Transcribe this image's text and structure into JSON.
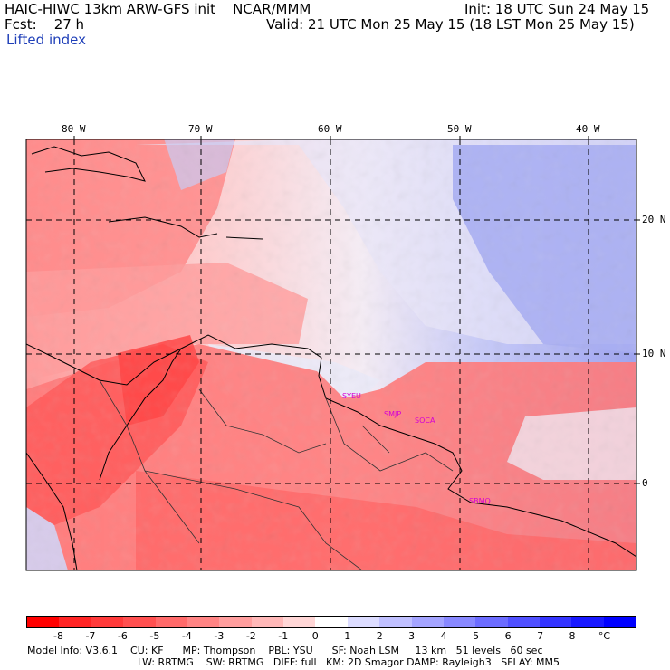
{
  "header": {
    "left_line1": "HAIC-HIWC 13km ARW-GFS init    NCAR/MMM",
    "left_line2": "Fcst:    27 h",
    "right_line1": "Init: 18 UTC Sun 24 May 15",
    "right_line2": "Valid: 21 UTC Mon 25 May 15 (18 LST Mon 25 May 15)",
    "field_name": "Lifted index"
  },
  "map": {
    "lon_labels": [
      "80 W",
      "70 W",
      "60 W",
      "50 W",
      "40 W"
    ],
    "lat_labels": [
      "20 N",
      "10 N",
      "0"
    ],
    "station_labels": [
      "SYEU",
      "SMJP",
      "SOCA",
      "SBMQ"
    ],
    "colors": {
      "station_label": "#d400d4",
      "grid_line": "#000000"
    }
  },
  "colorbar": {
    "labels": [
      "-8",
      "-7",
      "-6",
      "-5",
      "-4",
      "-3",
      "-2",
      "-1",
      "0",
      "1",
      "2",
      "3",
      "4",
      "5",
      "6",
      "7",
      "8",
      "°C"
    ],
    "colors": [
      "#ff0000",
      "#ff2424",
      "#ff3a3a",
      "#ff5050",
      "#ff6a6a",
      "#ff8484",
      "#ff9e9e",
      "#ffb8b8",
      "#ffd6d6",
      "#ffffff",
      "#dcdcff",
      "#c0c0ff",
      "#a4a4ff",
      "#8888ff",
      "#6c6cff",
      "#5050ff",
      "#3434ff",
      "#1818ff",
      "#0000ff"
    ]
  },
  "model_info": {
    "line1": "Model Info: V3.6.1    CU: KF      MP: Thompson    PBL: YSU      SF: Noah LSM     13 km   51 levels   60 sec",
    "line2": "LW: RRTMG    SW: RRTMG   DIFF: full   KM: 2D Smagor DAMP: Rayleigh3   SFLAY: MM5"
  }
}
